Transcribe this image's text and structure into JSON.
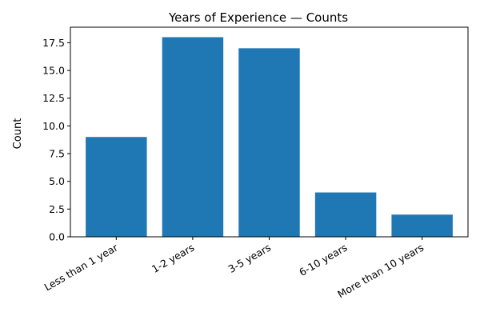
{
  "chart_data": {
    "type": "bar",
    "title": "Years of Experience — Counts",
    "xlabel": "",
    "ylabel": "Count",
    "categories": [
      "Less than 1 year",
      "1-2 years",
      "3-5 years",
      "6-10 years",
      "More than 10 years"
    ],
    "values": [
      9,
      18,
      17,
      4,
      2
    ],
    "ylim": [
      0,
      18.9
    ],
    "yticks": [
      0.0,
      2.5,
      5.0,
      7.5,
      10.0,
      12.5,
      15.0,
      17.5
    ],
    "ytick_labels": [
      "0.0",
      "2.5",
      "5.0",
      "7.5",
      "10.0",
      "12.5",
      "15.0",
      "17.5"
    ],
    "grid": false,
    "legend": "none",
    "bar_color": "#1f77b4"
  }
}
